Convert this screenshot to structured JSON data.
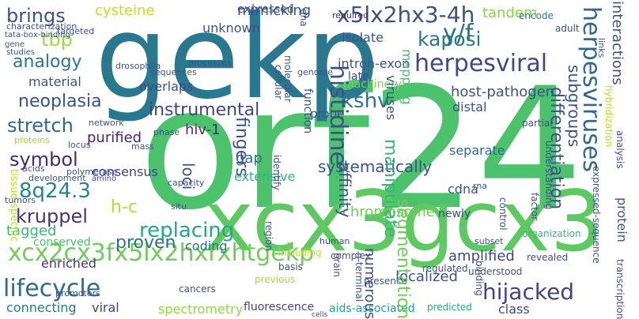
{
  "words": [
    {
      "text": "orf24",
      "color": "#4cc26c"
    },
    {
      "text": "gekp",
      "color": "#2a788e"
    },
    {
      "text": "xcx3gcx3",
      "color": "#5ec962"
    },
    {
      "text": "x5lx2hx3-4h",
      "color": "#3b528b"
    },
    {
      "text": "y/f",
      "color": "#2c728e"
    },
    {
      "text": "lifecycle",
      "color": "#2f6b8e"
    },
    {
      "text": "herpesviral",
      "color": "#3e4989"
    },
    {
      "text": "kaposi",
      "color": "#2a788e"
    },
    {
      "text": "xcx2cx3fx5lx2hxrxhtgekp",
      "color": "#6ece58"
    },
    {
      "text": "hijacked",
      "color": "#414487"
    },
    {
      "text": "kshv",
      "color": "#2c728e"
    },
    {
      "text": "brings",
      "color": "#3b528b"
    },
    {
      "text": "stretch",
      "color": "#31688e"
    },
    {
      "text": "symbol",
      "color": "#482878"
    },
    {
      "text": "8q24.3",
      "color": "#25858e"
    },
    {
      "text": "kruppel",
      "color": "#46327e"
    },
    {
      "text": "tbp",
      "color": "#a0da39"
    },
    {
      "text": "analogy",
      "color": "#2a788e"
    },
    {
      "text": "neoplasia",
      "color": "#3b528b"
    },
    {
      "text": "replacing",
      "color": "#22a884"
    },
    {
      "text": "proven",
      "color": "#2c728e"
    },
    {
      "text": "instrumental",
      "color": "#414487"
    },
    {
      "text": "h-c",
      "color": "#b5de2b"
    },
    {
      "text": "systematically",
      "color": "#3b528b"
    },
    {
      "text": "cysteine",
      "color": "#bddf26"
    },
    {
      "text": "mimicking",
      "color": "#3b528b"
    },
    {
      "text": "tandem",
      "color": "#86d549"
    },
    {
      "text": "host-pathogen",
      "color": "#3b528b"
    },
    {
      "text": "chromosome",
      "color": "#6ece58"
    },
    {
      "text": "amplified",
      "color": "#3e4989"
    },
    {
      "text": "separate",
      "color": "#31688e"
    },
    {
      "text": "localized",
      "color": "#3b528b"
    },
    {
      "text": "tagged",
      "color": "#37b878"
    },
    {
      "text": "connecting",
      "color": "#2a788e"
    },
    {
      "text": "viral",
      "color": "#3e4989"
    },
    {
      "text": "spectrometry",
      "color": "#90d743"
    },
    {
      "text": "fluorescence",
      "color": "#404688"
    },
    {
      "text": "aids-associated",
      "color": "#1fa188"
    },
    {
      "text": "class",
      "color": "#3e4989"
    },
    {
      "text": "hiv-1",
      "color": "#472d7b"
    },
    {
      "text": "gap",
      "color": "#2c728e"
    },
    {
      "text": "extensive",
      "color": "#31b57b"
    },
    {
      "text": "overlaps",
      "color": "#3e4989"
    },
    {
      "text": "material",
      "color": "#3b528b"
    },
    {
      "text": "purified",
      "color": "#482475"
    },
    {
      "text": "consensus",
      "color": "#433e85"
    },
    {
      "text": "enriched",
      "color": "#46327e"
    },
    {
      "text": "coding",
      "color": "#2c728e"
    },
    {
      "text": "conserved",
      "color": "#4ac16d"
    },
    {
      "text": "isolate",
      "color": "#3b528b"
    },
    {
      "text": "intron-exon",
      "color": "#3b528b"
    },
    {
      "text": "machinery",
      "color": "#7ad151"
    },
    {
      "text": "late",
      "color": "#3e4989"
    },
    {
      "text": "expressed",
      "color": "#3b528b"
    },
    {
      "text": "unknown",
      "color": "#3b528b"
    },
    {
      "text": "distal",
      "color": "#3b528b"
    },
    {
      "text": "probe",
      "color": "#3b528b"
    },
    {
      "text": "cdna",
      "color": "#3b528b"
    },
    {
      "text": "newly",
      "color": "#3e4989"
    },
    {
      "text": "understood",
      "color": "#3b528b"
    },
    {
      "text": "subset",
      "color": "#3b528b"
    },
    {
      "text": "revealed",
      "color": "#3b528b"
    },
    {
      "text": "predicted",
      "color": "#22a884"
    },
    {
      "text": "complex",
      "color": "#3b528b"
    },
    {
      "text": "basis",
      "color": "#3b528b"
    },
    {
      "text": "previous",
      "color": "#a5db36"
    },
    {
      "text": "cancers",
      "color": "#3b528b"
    },
    {
      "text": "including",
      "color": "#cae11f"
    },
    {
      "text": "presence",
      "color": "#3b528b"
    },
    {
      "text": "encode",
      "color": "#2a788e"
    },
    {
      "text": "adult",
      "color": "#3b528b"
    },
    {
      "text": "partial",
      "color": "#3b528b"
    },
    {
      "text": "organization",
      "color": "#35b779"
    },
    {
      "text": "regulated",
      "color": "#3b528b"
    },
    {
      "text": "rna",
      "color": "#3b528b"
    },
    {
      "text": "human",
      "color": "#3b528b"
    },
    {
      "text": "genome",
      "color": "#3b528b"
    },
    {
      "text": "situ",
      "color": "#3b528b"
    },
    {
      "text": "processes",
      "color": "#3b528b"
    },
    {
      "text": "sequences",
      "color": "#3b528b"
    },
    {
      "text": "required",
      "color": "#482878"
    },
    {
      "text": "targeted",
      "color": "#3b528b"
    },
    {
      "text": "characterization",
      "color": "#3b528b"
    },
    {
      "text": "tata-box-binding",
      "color": "#3b528b"
    },
    {
      "text": "gene",
      "color": "#3b528b"
    },
    {
      "text": "studies",
      "color": "#3b528b"
    },
    {
      "text": "drosophila",
      "color": "#3b528b"
    },
    {
      "text": "phase",
      "color": "#3b528b"
    },
    {
      "text": "mass",
      "color": "#3b528b"
    },
    {
      "text": "locus",
      "color": "#3b528b"
    },
    {
      "text": "polymerase",
      "color": "#3b528b"
    },
    {
      "text": "capacity",
      "color": "#3b528b"
    },
    {
      "text": "amino",
      "color": "#3b528b"
    },
    {
      "text": "network",
      "color": "#3b528b"
    },
    {
      "text": "tumors",
      "color": "#3b528b"
    },
    {
      "text": "proteins",
      "color": "#a0da39"
    },
    {
      "text": "acids",
      "color": "#3b528b"
    },
    {
      "text": "development",
      "color": "#3b528b"
    },
    {
      "text": "promoters",
      "color": "#3b528b"
    },
    {
      "text": "cells",
      "color": "#3b528b"
    }
  ],
  "vertical_words": [
    {
      "text": "interactions",
      "color": "#3b528b"
    },
    {
      "text": "hybridization",
      "color": "#b5de2b"
    },
    {
      "text": "herpesviruses",
      "color": "#31688e"
    },
    {
      "text": "subgroups",
      "color": "#3b528b"
    },
    {
      "text": "links",
      "color": "#3b528b"
    },
    {
      "text": "segmentation",
      "color": "#6ece58"
    },
    {
      "text": "histidine",
      "color": "#3b528b"
    },
    {
      "text": "manipulate",
      "color": "#35b779"
    },
    {
      "text": "affinity",
      "color": "#3b528b"
    },
    {
      "text": "numerous",
      "color": "#3b528b"
    },
    {
      "text": "fingers",
      "color": "#3b528b"
    },
    {
      "text": "loci",
      "color": "#3b528b"
    },
    {
      "text": "mapping",
      "color": "#4ac16d"
    },
    {
      "text": "viruses",
      "color": "#3b528b"
    },
    {
      "text": "dna",
      "color": "#3b528b"
    },
    {
      "text": "function",
      "color": "#3b528b"
    },
    {
      "text": "molecular",
      "color": "#3b528b"
    },
    {
      "text": "cellular",
      "color": "#3b528b"
    },
    {
      "text": "tissue-specific",
      "color": "#b5de2b"
    },
    {
      "text": "identify",
      "color": "#3b528b"
    },
    {
      "text": "n-terminal",
      "color": "#3b528b"
    },
    {
      "text": "brain",
      "color": "#3b528b"
    },
    {
      "text": "control",
      "color": "#3b528b"
    },
    {
      "text": "understanding",
      "color": "#3b528b"
    },
    {
      "text": "differentiation",
      "color": "#3b528b"
    },
    {
      "text": "expressed-sequence",
      "color": "#3b528b"
    },
    {
      "text": "protein",
      "color": "#3b528b"
    },
    {
      "text": "analysis",
      "color": "#3b528b"
    },
    {
      "text": "region",
      "color": "#3b528b"
    },
    {
      "text": "transcription",
      "color": "#3b528b"
    },
    {
      "text": "binding",
      "color": "#3b528b"
    },
    {
      "text": "factor",
      "color": "#3b528b"
    }
  ]
}
